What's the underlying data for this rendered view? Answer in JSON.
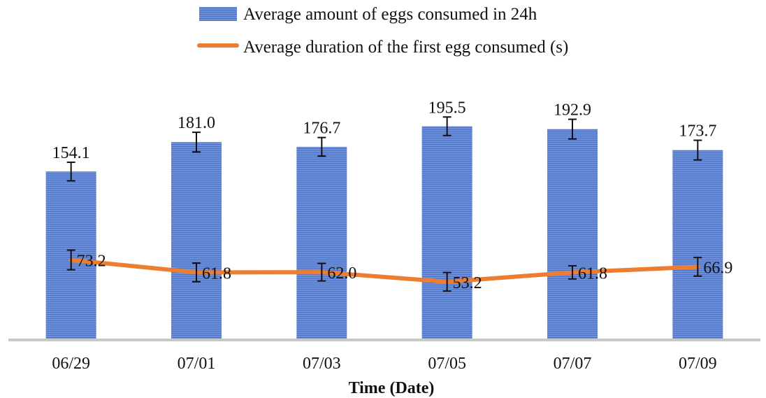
{
  "chart_data": {
    "type": "bar",
    "categories": [
      "06/29",
      "07/01",
      "07/03",
      "07/05",
      "07/07",
      "07/09"
    ],
    "xlabel": "Time (Date)",
    "ylabel": "",
    "title": "",
    "ylim": [
      0,
      240
    ],
    "grid": false,
    "legend_position": "top-center",
    "series": [
      {
        "name": "Average amount of eggs consumed in 24h",
        "type": "bar",
        "values": [
          154.1,
          181.0,
          176.7,
          195.5,
          192.9,
          173.7
        ],
        "labels": [
          "154.1",
          "181.0",
          "176.7",
          "195.5",
          "192.9",
          "173.7"
        ],
        "error": [
          8.5,
          9.0,
          8.5,
          8.5,
          9.0,
          9.0
        ],
        "color": "#5b7fcf"
      },
      {
        "name": "Average duration of the first egg consumed (s)",
        "type": "line",
        "values": [
          73.2,
          61.8,
          62.0,
          53.2,
          61.8,
          66.9
        ],
        "labels": [
          "73.2",
          "61.8",
          "62.0",
          "53.2",
          "61.8",
          "66.9"
        ],
        "error": [
          9.0,
          8.5,
          8.0,
          8.5,
          6.0,
          8.5
        ],
        "color": "#ed7d31"
      }
    ]
  }
}
